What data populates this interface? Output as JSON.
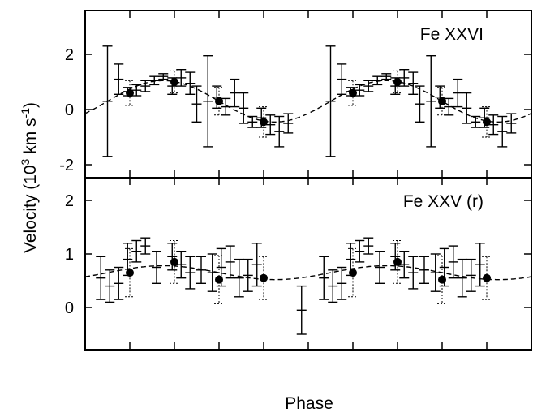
{
  "figure": {
    "xlabel": "Phase",
    "ylabel_main": "Velocity (10",
    "ylabel_exp": "3",
    "ylabel_mid": " km s",
    "ylabel_exp2": "-1",
    "ylabel_end": ")"
  },
  "chart_data": [
    {
      "type": "scatter",
      "panel_label": "Fe XXVI",
      "xlabel": "Phase",
      "ylabel": "Velocity (10^3 km s^-1)",
      "xlim": [
        0,
        2
      ],
      "ylim": [
        -2.4,
        3.8
      ],
      "yticks": [
        -2,
        0,
        2
      ],
      "xticks": [
        0,
        0.2,
        0.4,
        0.6,
        0.8,
        1.0,
        1.2,
        1.4,
        1.6,
        1.8,
        2.0
      ],
      "xtick_labels_shown": false,
      "grid": false,
      "series": [
        {
          "style": "crosses-with-error-bars",
          "points": [
            {
              "x": 0.1,
              "y": 0.3,
              "yerr": 2.0
            },
            {
              "x": 0.15,
              "y": 1.1,
              "yerr": 0.55
            },
            {
              "x": 0.19,
              "y": 0.65,
              "yerr": 0.15
            },
            {
              "x": 0.23,
              "y": 0.7,
              "yerr": 0.2
            },
            {
              "x": 0.27,
              "y": 0.85,
              "yerr": 0.2
            },
            {
              "x": 0.31,
              "y": 1.05,
              "yerr": 0.15
            },
            {
              "x": 0.35,
              "y": 1.2,
              "yerr": 0.1
            },
            {
              "x": 0.39,
              "y": 0.85,
              "yerr": 0.3
            },
            {
              "x": 0.43,
              "y": 1.15,
              "yerr": 0.3
            },
            {
              "x": 0.47,
              "y": 0.95,
              "yerr": 0.4
            },
            {
              "x": 0.5,
              "y": 0.2,
              "yerr": 0.65
            },
            {
              "x": 0.55,
              "y": 0.3,
              "yerr": 1.65
            },
            {
              "x": 0.59,
              "y": 0.45,
              "yerr": 0.4
            },
            {
              "x": 0.63,
              "y": 0.1,
              "yerr": 0.3
            },
            {
              "x": 0.67,
              "y": 0.6,
              "yerr": 0.5
            },
            {
              "x": 0.71,
              "y": 0.05,
              "yerr": 0.55
            },
            {
              "x": 0.75,
              "y": -0.45,
              "yerr": 0.2
            },
            {
              "x": 0.79,
              "y": -0.3,
              "yerr": 0.35
            },
            {
              "x": 0.83,
              "y": -0.55,
              "yerr": 0.35
            },
            {
              "x": 0.87,
              "y": -0.8,
              "yerr": 0.55
            },
            {
              "x": 0.91,
              "y": -0.5,
              "yerr": 0.35
            },
            {
              "x": 1.1,
              "y": 0.3,
              "yerr": 2.0
            },
            {
              "x": 1.15,
              "y": 1.1,
              "yerr": 0.55
            },
            {
              "x": 1.19,
              "y": 0.65,
              "yerr": 0.15
            },
            {
              "x": 1.23,
              "y": 0.7,
              "yerr": 0.2
            },
            {
              "x": 1.27,
              "y": 0.85,
              "yerr": 0.2
            },
            {
              "x": 1.31,
              "y": 1.05,
              "yerr": 0.15
            },
            {
              "x": 1.35,
              "y": 1.2,
              "yerr": 0.1
            },
            {
              "x": 1.39,
              "y": 0.85,
              "yerr": 0.3
            },
            {
              "x": 1.43,
              "y": 1.15,
              "yerr": 0.3
            },
            {
              "x": 1.47,
              "y": 0.95,
              "yerr": 0.4
            },
            {
              "x": 1.5,
              "y": 0.2,
              "yerr": 0.65
            },
            {
              "x": 1.55,
              "y": 0.3,
              "yerr": 1.65
            },
            {
              "x": 1.59,
              "y": 0.45,
              "yerr": 0.4
            },
            {
              "x": 1.63,
              "y": 0.1,
              "yerr": 0.3
            },
            {
              "x": 1.67,
              "y": 0.6,
              "yerr": 0.5
            },
            {
              "x": 1.71,
              "y": 0.05,
              "yerr": 0.55
            },
            {
              "x": 1.75,
              "y": -0.45,
              "yerr": 0.2
            },
            {
              "x": 1.79,
              "y": -0.3,
              "yerr": 0.35
            },
            {
              "x": 1.83,
              "y": -0.55,
              "yerr": 0.35
            },
            {
              "x": 1.87,
              "y": -0.8,
              "yerr": 0.55
            },
            {
              "x": 1.91,
              "y": -0.5,
              "yerr": 0.35
            }
          ]
        },
        {
          "style": "filled-circles-dotted-error-bars",
          "points": [
            {
              "x": 0.2,
              "y": 0.6,
              "yerr": 0.45
            },
            {
              "x": 0.4,
              "y": 1.0,
              "yerr": 0.4
            },
            {
              "x": 0.6,
              "y": 0.3,
              "yerr": 0.5
            },
            {
              "x": 0.8,
              "y": -0.45,
              "yerr": 0.55
            },
            {
              "x": 1.2,
              "y": 0.6,
              "yerr": 0.45
            },
            {
              "x": 1.4,
              "y": 1.0,
              "yerr": 0.4
            },
            {
              "x": 1.6,
              "y": 0.3,
              "yerr": 0.5
            },
            {
              "x": 1.8,
              "y": -0.45,
              "yerr": 0.55
            }
          ]
        },
        {
          "style": "dashed-line",
          "model": {
            "kind": "sinusoid",
            "offset": 0.3,
            "amplitude": 0.75,
            "peak_phase": 0.35,
            "period": 1.0
          }
        }
      ]
    },
    {
      "type": "scatter",
      "panel_label": "Fe XXV (r)",
      "xlabel": "Phase",
      "ylabel": "Velocity (10^3 km s^-1)",
      "xlim": [
        0,
        2
      ],
      "ylim": [
        -0.75,
        2.45
      ],
      "yticks": [
        0,
        1,
        2
      ],
      "xticks": [
        0,
        0.2,
        0.4,
        0.6,
        0.8,
        1.0,
        1.2,
        1.4,
        1.6,
        1.8,
        2.0
      ],
      "xtick_labels_shown": false,
      "grid": false,
      "series": [
        {
          "style": "crosses-with-error-bars",
          "points": [
            {
              "x": 0.07,
              "y": 0.55,
              "yerr": 0.4
            },
            {
              "x": 0.11,
              "y": 0.4,
              "yerr": 0.3
            },
            {
              "x": 0.15,
              "y": 0.45,
              "yerr": 0.3
            },
            {
              "x": 0.19,
              "y": 0.9,
              "yerr": 0.3
            },
            {
              "x": 0.23,
              "y": 1.05,
              "yerr": 0.2
            },
            {
              "x": 0.27,
              "y": 1.15,
              "yerr": 0.15
            },
            {
              "x": 0.32,
              "y": 0.75,
              "yerr": 0.3
            },
            {
              "x": 0.39,
              "y": 0.95,
              "yerr": 0.25
            },
            {
              "x": 0.43,
              "y": 0.8,
              "yerr": 0.25
            },
            {
              "x": 0.47,
              "y": 0.65,
              "yerr": 0.3
            },
            {
              "x": 0.52,
              "y": 0.7,
              "yerr": 0.25
            },
            {
              "x": 0.57,
              "y": 0.65,
              "yerr": 0.35
            },
            {
              "x": 0.61,
              "y": 0.75,
              "yerr": 0.35
            },
            {
              "x": 0.65,
              "y": 0.85,
              "yerr": 0.3
            },
            {
              "x": 0.69,
              "y": 0.55,
              "yerr": 0.35
            },
            {
              "x": 0.73,
              "y": 0.6,
              "yerr": 0.3
            },
            {
              "x": 0.77,
              "y": 0.8,
              "yerr": 0.4
            },
            {
              "x": 0.97,
              "y": -0.05,
              "yerr": 0.45
            },
            {
              "x": 1.07,
              "y": 0.55,
              "yerr": 0.4
            },
            {
              "x": 1.11,
              "y": 0.4,
              "yerr": 0.3
            },
            {
              "x": 1.15,
              "y": 0.45,
              "yerr": 0.3
            },
            {
              "x": 1.19,
              "y": 0.9,
              "yerr": 0.3
            },
            {
              "x": 1.23,
              "y": 1.05,
              "yerr": 0.2
            },
            {
              "x": 1.27,
              "y": 1.15,
              "yerr": 0.15
            },
            {
              "x": 1.32,
              "y": 0.75,
              "yerr": 0.3
            },
            {
              "x": 1.39,
              "y": 0.95,
              "yerr": 0.25
            },
            {
              "x": 1.43,
              "y": 0.8,
              "yerr": 0.25
            },
            {
              "x": 1.47,
              "y": 0.65,
              "yerr": 0.3
            },
            {
              "x": 1.52,
              "y": 0.7,
              "yerr": 0.25
            },
            {
              "x": 1.57,
              "y": 0.65,
              "yerr": 0.35
            },
            {
              "x": 1.61,
              "y": 0.75,
              "yerr": 0.35
            },
            {
              "x": 1.65,
              "y": 0.85,
              "yerr": 0.3
            },
            {
              "x": 1.69,
              "y": 0.55,
              "yerr": 0.35
            },
            {
              "x": 1.73,
              "y": 0.6,
              "yerr": 0.3
            },
            {
              "x": 1.77,
              "y": 0.8,
              "yerr": 0.4
            }
          ]
        },
        {
          "style": "filled-circles-dotted-error-bars",
          "points": [
            {
              "x": 0.2,
              "y": 0.65,
              "yerr": 0.45
            },
            {
              "x": 0.4,
              "y": 0.85,
              "yerr": 0.4
            },
            {
              "x": 0.6,
              "y": 0.52,
              "yerr": 0.45
            },
            {
              "x": 0.8,
              "y": 0.55,
              "yerr": 0.4
            },
            {
              "x": 1.2,
              "y": 0.65,
              "yerr": 0.45
            },
            {
              "x": 1.4,
              "y": 0.85,
              "yerr": 0.4
            },
            {
              "x": 1.6,
              "y": 0.52,
              "yerr": 0.45
            },
            {
              "x": 1.8,
              "y": 0.55,
              "yerr": 0.4
            }
          ]
        },
        {
          "style": "dashed-line",
          "model": {
            "kind": "sinusoid",
            "offset": 0.65,
            "amplitude": 0.13,
            "peak_phase": 0.35,
            "period": 1.0
          }
        }
      ]
    }
  ]
}
